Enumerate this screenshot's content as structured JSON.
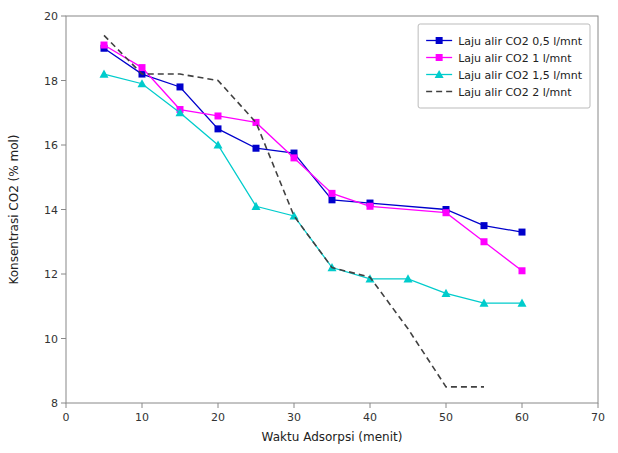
{
  "chart_data": {
    "type": "line",
    "xlabel": "Waktu Adsorpsi (menit)",
    "ylabel": "Konsentrasi CO2 (% mol)",
    "xlim": [
      0,
      70
    ],
    "ylim": [
      8,
      20
    ],
    "xticks": [
      0,
      10,
      20,
      30,
      40,
      50,
      60,
      70
    ],
    "yticks": [
      8,
      10,
      12,
      14,
      16,
      18,
      20
    ],
    "grid": false,
    "legend": "upper right",
    "series": [
      {
        "name": "Laju alir CO2 0,5 l/mnt",
        "color": "#0000CC",
        "marker": "square",
        "line_style": "solid",
        "x": [
          5,
          10,
          15,
          20,
          25,
          30,
          35,
          40,
          50,
          55,
          60
        ],
        "values": [
          19.0,
          18.2,
          17.8,
          16.5,
          15.9,
          15.75,
          14.3,
          14.2,
          14.0,
          13.5,
          13.3
        ]
      },
      {
        "name": "Laju alir CO2 1 l/mnt",
        "color": "#FF00FF",
        "marker": "square",
        "line_style": "solid",
        "x": [
          5,
          10,
          15,
          20,
          25,
          30,
          35,
          40,
          50,
          55,
          60
        ],
        "values": [
          19.1,
          18.4,
          17.1,
          16.9,
          16.7,
          15.6,
          14.5,
          14.1,
          13.9,
          13.0,
          12.1
        ]
      },
      {
        "name": "Laju alir CO2 1,5 l/mnt",
        "color": "#00CCCC",
        "marker": "triangle",
        "line_style": "solid",
        "x": [
          5,
          10,
          15,
          20,
          25,
          30,
          35,
          40,
          45,
          50,
          55,
          60
        ],
        "values": [
          18.2,
          17.9,
          17.0,
          16.0,
          14.1,
          13.8,
          12.2,
          11.85,
          11.85,
          11.4,
          11.1,
          11.1
        ]
      },
      {
        "name": "Laju alir CO2 2 l/mnt",
        "color": "#404040",
        "marker": "none",
        "line_style": "dashed",
        "x": [
          5,
          10,
          15,
          20,
          25,
          30,
          35,
          40,
          45,
          50,
          55
        ],
        "values": [
          19.4,
          18.2,
          18.2,
          18.0,
          16.7,
          13.8,
          12.2,
          11.9,
          10.3,
          8.5,
          8.5
        ]
      }
    ]
  }
}
